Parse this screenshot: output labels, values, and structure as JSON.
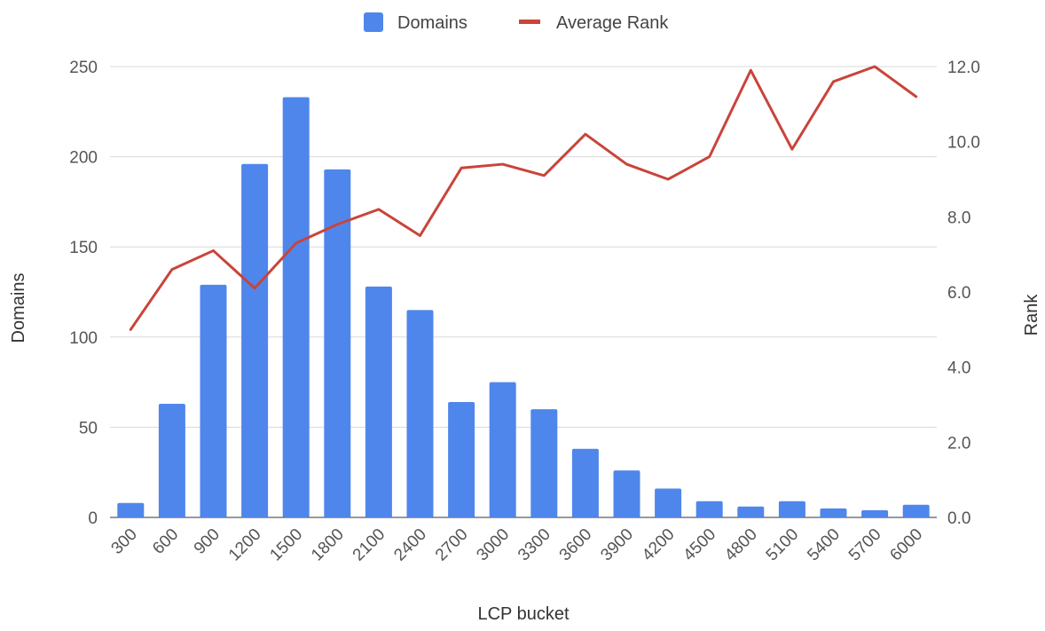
{
  "chart_data": {
    "type": "bar",
    "categories": [
      "300",
      "600",
      "900",
      "1200",
      "1500",
      "1800",
      "2100",
      "2400",
      "2700",
      "3000",
      "3300",
      "3600",
      "3900",
      "4200",
      "4500",
      "4800",
      "5100",
      "5400",
      "5700",
      "6000"
    ],
    "series": [
      {
        "name": "Domains",
        "type": "bar",
        "axis": "left",
        "color": "#4f86ec",
        "values": [
          8,
          63,
          129,
          196,
          233,
          193,
          128,
          115,
          64,
          75,
          60,
          38,
          26,
          16,
          9,
          6,
          9,
          5,
          4,
          7
        ]
      },
      {
        "name": "Average Rank",
        "type": "line",
        "axis": "right",
        "color": "#c9443a",
        "values": [
          5.0,
          6.6,
          7.1,
          6.1,
          7.3,
          7.8,
          8.2,
          7.5,
          9.3,
          9.4,
          9.1,
          10.2,
          9.4,
          9.0,
          9.6,
          11.9,
          9.8,
          11.6,
          12.0,
          11.2
        ]
      }
    ],
    "xlabel": "LCP bucket",
    "ylabel": "Domains",
    "ylabel_right": "Rank",
    "ylim": [
      0,
      250
    ],
    "ylim_right": [
      0,
      12
    ],
    "yticks": [
      "0",
      "50",
      "100",
      "150",
      "200",
      "250"
    ],
    "yticks_right": [
      "0.0",
      "2.0",
      "4.0",
      "6.0",
      "8.0",
      "10.0",
      "12.0"
    ],
    "grid": true,
    "legend_position": "top"
  }
}
